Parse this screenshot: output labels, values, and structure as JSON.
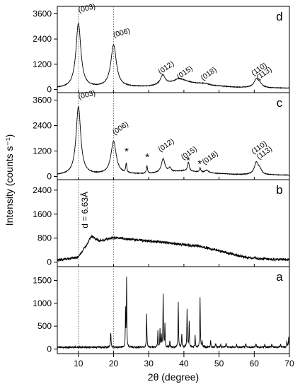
{
  "chart_data": {
    "type": "line",
    "xlabel": "2θ (degree)",
    "ylabel": "Intensity (counts s⁻¹)",
    "xlim": [
      4,
      70
    ],
    "x_ticks": [
      10,
      20,
      30,
      40,
      50,
      60,
      70
    ],
    "x_tick_labels": [
      "10",
      "20",
      "30",
      "40",
      "50",
      "60",
      "70"
    ],
    "reference_lines_x": [
      10,
      20
    ],
    "panels": [
      {
        "label": "d",
        "ylim": [
          -150,
          3950
        ],
        "y_ticks": [
          0,
          1200,
          2400,
          3600
        ],
        "y_tick_labels": [
          "0",
          "1200",
          "2400",
          "3600"
        ],
        "baseline": 60,
        "background": [
          [
            4,
            60
          ],
          [
            30,
            130
          ],
          [
            40,
            360
          ],
          [
            48,
            180
          ],
          [
            55,
            100
          ],
          [
            70,
            60
          ]
        ],
        "peaks": [
          {
            "x": 10.0,
            "height": 3050,
            "width": 0.85
          },
          {
            "x": 20.0,
            "height": 2000,
            "width": 0.95
          },
          {
            "x": 34.0,
            "height": 450,
            "width": 0.8
          },
          {
            "x": 38.5,
            "height": 170,
            "width": 1.6
          },
          {
            "x": 46.0,
            "height": 60,
            "width": 1.6
          },
          {
            "x": 60.6,
            "height": 380,
            "width": 0.8
          },
          {
            "x": 61.6,
            "height": 160,
            "width": 0.7
          }
        ],
        "annotations": [
          {
            "text": "(003)",
            "x": 10.2,
            "y": 3650,
            "rotate": -15
          },
          {
            "text": "(006)",
            "x": 20.1,
            "y": 2480,
            "rotate": -15
          },
          {
            "text": "(012)",
            "x": 33.3,
            "y": 710,
            "rotate": -35
          },
          {
            "text": "(015)",
            "x": 38.6,
            "y": 480,
            "rotate": -35
          },
          {
            "text": "(018)",
            "x": 45.4,
            "y": 420,
            "rotate": -35
          },
          {
            "text": "(110)",
            "x": 59.8,
            "y": 650,
            "rotate": -35
          },
          {
            "text": "(113)",
            "x": 61.2,
            "y": 450,
            "rotate": -35
          }
        ]
      },
      {
        "label": "c",
        "ylim": [
          -150,
          3950
        ],
        "y_ticks": [
          0,
          1200,
          2400,
          3600
        ],
        "y_tick_labels": [
          "0",
          "1200",
          "2400",
          "3600"
        ],
        "baseline": 60,
        "background": [
          [
            4,
            60
          ],
          [
            30,
            120
          ],
          [
            40,
            260
          ],
          [
            48,
            150
          ],
          [
            55,
            90
          ],
          [
            70,
            60
          ]
        ],
        "peaks": [
          {
            "x": 10.0,
            "height": 3200,
            "width": 0.8
          },
          {
            "x": 20.0,
            "height": 1550,
            "width": 0.9
          },
          {
            "x": 23.6,
            "height": 430,
            "width": 0.18
          },
          {
            "x": 29.5,
            "height": 360,
            "width": 0.2
          },
          {
            "x": 34.1,
            "height": 650,
            "width": 0.6
          },
          {
            "x": 36.0,
            "height": 180,
            "width": 0.4
          },
          {
            "x": 41.3,
            "height": 420,
            "width": 0.3
          },
          {
            "x": 44.6,
            "height": 200,
            "width": 0.2
          },
          {
            "x": 46.5,
            "height": 120,
            "width": 0.6
          },
          {
            "x": 60.6,
            "height": 560,
            "width": 0.7
          },
          {
            "x": 61.6,
            "height": 200,
            "width": 0.6
          }
        ],
        "stars": [
          {
            "x": 23.7,
            "y": 1020
          },
          {
            "x": 29.6,
            "y": 750
          },
          {
            "x": 41.2,
            "y": 600
          },
          {
            "x": 44.5,
            "y": 430
          }
        ],
        "annotations": [
          {
            "text": "(003)",
            "x": 10.2,
            "y": 3640,
            "rotate": -15
          },
          {
            "text": "(006)",
            "x": 20.3,
            "y": 1950,
            "rotate": -35
          },
          {
            "text": "(012)",
            "x": 33.3,
            "y": 1150,
            "rotate": -35
          },
          {
            "text": "(015)",
            "x": 39.8,
            "y": 780,
            "rotate": -35
          },
          {
            "text": "(018)",
            "x": 45.8,
            "y": 560,
            "rotate": -35
          },
          {
            "text": "(110)",
            "x": 59.8,
            "y": 1050,
            "rotate": -35
          },
          {
            "text": "(113)",
            "x": 61.3,
            "y": 800,
            "rotate": -35
          }
        ]
      },
      {
        "label": "b",
        "ylim": [
          -150,
          2750
        ],
        "y_ticks": [
          0,
          800,
          1600,
          2400
        ],
        "y_tick_labels": [
          "0",
          "800",
          "1600",
          "2400"
        ],
        "baseline": 60,
        "background": [
          [
            4,
            60
          ],
          [
            10,
            160
          ],
          [
            12,
            500
          ],
          [
            14,
            780
          ],
          [
            16,
            700
          ],
          [
            20,
            820
          ],
          [
            25,
            760
          ],
          [
            35,
            650
          ],
          [
            45,
            520
          ],
          [
            52,
            320
          ],
          [
            58,
            150
          ],
          [
            65,
            90
          ],
          [
            70,
            80
          ]
        ],
        "peaks": [
          {
            "x": 13.4,
            "height": 130,
            "width": 0.7
          }
        ],
        "noise": 55,
        "annotations": [
          {
            "text": "d = 6.63Å",
            "x": 12.7,
            "y": 1130,
            "rotate": -90
          }
        ]
      },
      {
        "label": "a",
        "ylim": [
          -100,
          1800
        ],
        "y_ticks": [
          0,
          500,
          1000,
          1500
        ],
        "y_tick_labels": [
          "0",
          "500",
          "1000",
          "1500"
        ],
        "baseline": 40,
        "background": [
          [
            4,
            40
          ],
          [
            70,
            40
          ]
        ],
        "peaks": [
          {
            "x": 19.2,
            "height": 320,
            "width": 0.1
          },
          {
            "x": 23.4,
            "height": 820,
            "width": 0.07
          },
          {
            "x": 23.7,
            "height": 1520,
            "width": 0.07
          },
          {
            "x": 29.4,
            "height": 720,
            "width": 0.08
          },
          {
            "x": 32.6,
            "height": 350,
            "width": 0.08
          },
          {
            "x": 33.2,
            "height": 380,
            "width": 0.07
          },
          {
            "x": 33.6,
            "height": 250,
            "width": 0.07
          },
          {
            "x": 34.1,
            "height": 1150,
            "width": 0.08
          },
          {
            "x": 34.6,
            "height": 520,
            "width": 0.07
          },
          {
            "x": 36.0,
            "height": 150,
            "width": 0.08
          },
          {
            "x": 38.4,
            "height": 980,
            "width": 0.08
          },
          {
            "x": 39.4,
            "height": 300,
            "width": 0.08
          },
          {
            "x": 40.9,
            "height": 830,
            "width": 0.08
          },
          {
            "x": 41.5,
            "height": 540,
            "width": 0.08
          },
          {
            "x": 43.2,
            "height": 260,
            "width": 0.08
          },
          {
            "x": 44.6,
            "height": 1080,
            "width": 0.08
          },
          {
            "x": 45.2,
            "height": 130,
            "width": 0.08
          },
          {
            "x": 47.6,
            "height": 140,
            "width": 0.09
          },
          {
            "x": 49.0,
            "height": 80,
            "width": 0.1
          },
          {
            "x": 50.5,
            "height": 60,
            "width": 0.1
          },
          {
            "x": 52.0,
            "height": 90,
            "width": 0.1
          },
          {
            "x": 55.0,
            "height": 60,
            "width": 0.1
          },
          {
            "x": 57.6,
            "height": 70,
            "width": 0.1
          },
          {
            "x": 60.5,
            "height": 80,
            "width": 0.1
          },
          {
            "x": 63.0,
            "height": 60,
            "width": 0.1
          },
          {
            "x": 65.0,
            "height": 70,
            "width": 0.1
          },
          {
            "x": 67.5,
            "height": 60,
            "width": 0.1
          },
          {
            "x": 69.3,
            "height": 120,
            "width": 0.1
          },
          {
            "x": 69.8,
            "height": 220,
            "width": 0.1
          }
        ],
        "noise": 25,
        "annotations": []
      }
    ]
  }
}
